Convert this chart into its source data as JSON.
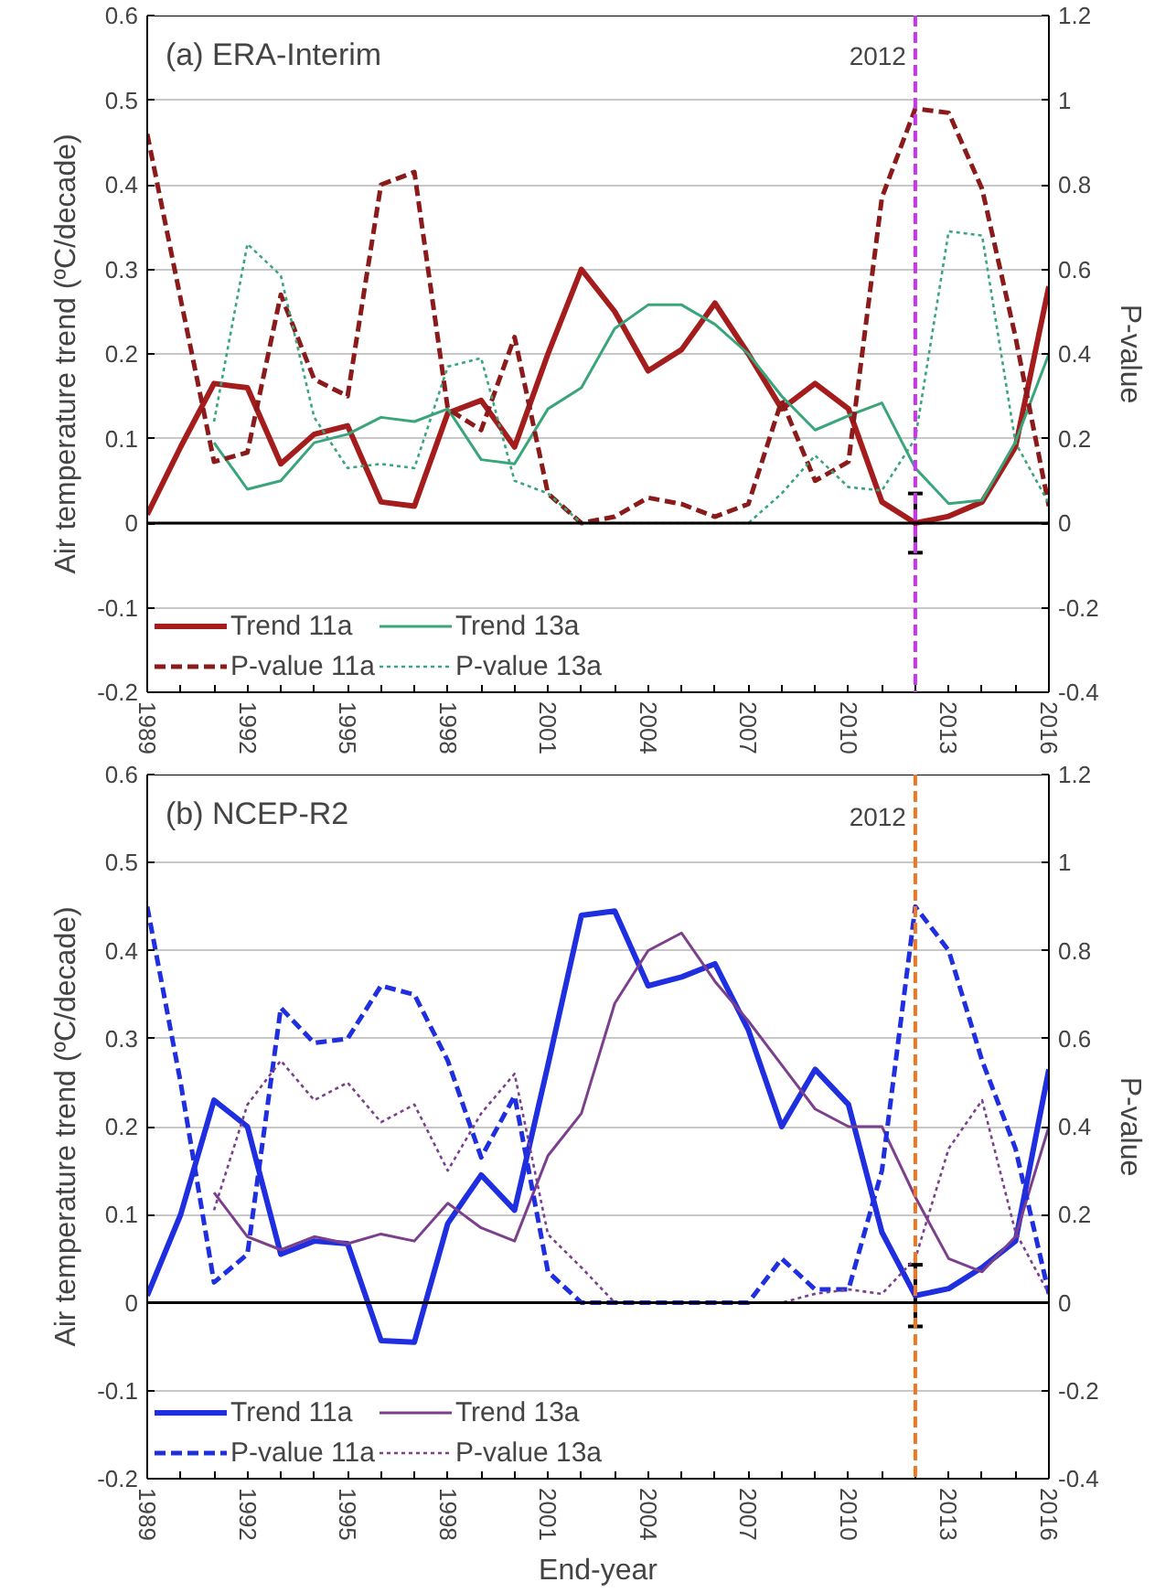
{
  "chart_data": [
    {
      "type": "line",
      "title": "(a) ERA-Interim",
      "ylabel": "Air temperature trend (ºC/decade)",
      "y2label": "P-value",
      "x": [
        1989,
        1990,
        1991,
        1992,
        1993,
        1994,
        1995,
        1996,
        1997,
        1998,
        1999,
        2000,
        2001,
        2002,
        2003,
        2004,
        2005,
        2006,
        2007,
        2008,
        2009,
        2010,
        2011,
        2012,
        2013,
        2014,
        2015,
        2016
      ],
      "xlim": [
        1989,
        2016
      ],
      "xticks": [
        1989,
        1992,
        1995,
        1998,
        2001,
        2004,
        2007,
        2010,
        2013,
        2016
      ],
      "ylim": [
        -0.2,
        0.6
      ],
      "yticks": [
        -0.2,
        -0.1,
        0,
        0.1,
        0.2,
        0.3,
        0.4,
        0.5,
        0.6
      ],
      "y2lim": [
        -0.4,
        1.2
      ],
      "y2ticks": [
        -0.4,
        -0.2,
        0,
        0.2,
        0.4,
        0.6,
        0.8,
        1,
        1.2
      ],
      "grid": "y",
      "legend": "bottom left",
      "marker": "none",
      "ref_lines": [
        {
          "axis": "x",
          "value": 2012,
          "label": "2012",
          "color": "#cc33ee",
          "line_style": "dashed"
        },
        {
          "axis": "y",
          "value": 0,
          "color": "#000000",
          "line_style": "solid"
        }
      ],
      "series": [
        {
          "name": "Trend 11a",
          "color": "#a51c1c",
          "line_style": "solid",
          "values": [
            0.01,
            0.09,
            0.165,
            0.16,
            0.07,
            0.105,
            0.115,
            0.025,
            0.02,
            0.13,
            0.145,
            0.09,
            0.2,
            0.3,
            0.25,
            0.18,
            0.205,
            0.26,
            0.2,
            0.135,
            0.165,
            0.135,
            0.025,
            0.0,
            0.008,
            0.025,
            0.09,
            0.28
          ],
          "errors": [
            null,
            null,
            null,
            null,
            null,
            null,
            null,
            null,
            null,
            null,
            null,
            null,
            null,
            null,
            null,
            null,
            null,
            null,
            null,
            null,
            null,
            null,
            null,
            0.035,
            null,
            null,
            null,
            null
          ]
        },
        {
          "name": "Trend 13a",
          "color": "#3aa57a",
          "line_style": "solid",
          "values": [
            null,
            null,
            0.095,
            0.04,
            0.05,
            0.095,
            0.105,
            0.125,
            0.12,
            0.135,
            0.075,
            0.07,
            0.135,
            0.16,
            0.23,
            0.258,
            0.258,
            0.235,
            0.2,
            0.15,
            0.11,
            0.127,
            0.142,
            0.065,
            0.023,
            0.027,
            0.096,
            0.2
          ]
        },
        {
          "name": "P-value 11a",
          "color": "#8b1a1a",
          "line_style": "dashed",
          "axis": "y2",
          "values": [
            0.92,
            0.53,
            0.145,
            0.167,
            0.54,
            0.34,
            0.3,
            0.8,
            0.83,
            0.27,
            0.22,
            0.44,
            0.07,
            0.0,
            0.015,
            0.06,
            0.045,
            0.015,
            0.045,
            0.29,
            0.1,
            0.145,
            0.77,
            0.98,
            0.97,
            0.79,
            0.44,
            0.04
          ]
        },
        {
          "name": "P-value 13a",
          "color": "#3aa57a",
          "line_style": "dotted",
          "axis": "y2",
          "values": [
            null,
            null,
            0.24,
            0.66,
            0.585,
            0.25,
            0.13,
            0.14,
            0.13,
            0.37,
            0.39,
            0.1,
            0.07,
            0,
            0,
            0,
            0,
            0,
            0,
            0.07,
            0.16,
            0.085,
            0.077,
            0.2,
            0.69,
            0.68,
            0.19,
            0.046
          ]
        }
      ]
    },
    {
      "type": "line",
      "title": "(b) NCEP-R2",
      "xlabel": "End-year",
      "ylabel": "Air temperature trend (ºC/decade)",
      "y2label": "P-value",
      "x": [
        1989,
        1990,
        1991,
        1992,
        1993,
        1994,
        1995,
        1996,
        1997,
        1998,
        1999,
        2000,
        2001,
        2002,
        2003,
        2004,
        2005,
        2006,
        2007,
        2008,
        2009,
        2010,
        2011,
        2012,
        2013,
        2014,
        2015,
        2016
      ],
      "xlim": [
        1989,
        2016
      ],
      "xticks": [
        1989,
        1992,
        1995,
        1998,
        2001,
        2004,
        2007,
        2010,
        2013,
        2016
      ],
      "ylim": [
        -0.2,
        0.6
      ],
      "yticks": [
        -0.2,
        -0.1,
        0,
        0.1,
        0.2,
        0.3,
        0.4,
        0.5,
        0.6
      ],
      "y2lim": [
        -0.4,
        1.2
      ],
      "y2ticks": [
        -0.4,
        -0.2,
        0,
        0.2,
        0.4,
        0.6,
        0.8,
        1,
        1.2
      ],
      "grid": "y",
      "legend": "bottom left",
      "marker": "none",
      "ref_lines": [
        {
          "axis": "x",
          "value": 2012,
          "label": "2012",
          "color": "#ee7722",
          "line_style": "dashed"
        },
        {
          "axis": "y",
          "value": 0,
          "color": "#000000",
          "line_style": "solid"
        }
      ],
      "series": [
        {
          "name": "Trend 11a",
          "color": "#1f2fe0",
          "line_style": "solid",
          "values": [
            0.008,
            0.1,
            0.23,
            0.2,
            0.055,
            0.07,
            0.067,
            -0.043,
            -0.045,
            0.09,
            0.145,
            0.105,
            0.27,
            0.44,
            0.445,
            0.36,
            0.37,
            0.385,
            0.31,
            0.2,
            0.265,
            0.225,
            0.08,
            0.008,
            0.016,
            0.04,
            0.07,
            0.265
          ],
          "errors": [
            null,
            null,
            null,
            null,
            null,
            null,
            null,
            null,
            null,
            null,
            null,
            null,
            null,
            null,
            null,
            null,
            null,
            null,
            null,
            null,
            null,
            null,
            null,
            0.035,
            null,
            null,
            null,
            null
          ]
        },
        {
          "name": "Trend 13a",
          "color": "#7b3f8c",
          "line_style": "solid",
          "values": [
            null,
            null,
            0.125,
            0.075,
            0.06,
            0.075,
            0.067,
            0.078,
            0.07,
            0.113,
            0.085,
            0.07,
            0.167,
            0.215,
            0.34,
            0.4,
            0.42,
            0.365,
            0.32,
            0.27,
            0.22,
            0.2,
            0.2,
            0.12,
            0.05,
            0.035,
            0.075,
            0.2
          ]
        },
        {
          "name": "P-value 11a",
          "color": "#1f2fe0",
          "line_style": "dashed",
          "axis": "y2",
          "values": [
            0.9,
            0.5,
            0.046,
            0.11,
            0.67,
            0.59,
            0.6,
            0.72,
            0.7,
            0.55,
            0.33,
            0.47,
            0.07,
            0,
            0,
            0,
            0,
            0,
            0,
            0.1,
            0.03,
            0.03,
            0.3,
            0.9,
            0.8,
            0.55,
            0.35,
            0.02
          ]
        },
        {
          "name": "P-value 13a",
          "color": "#7b3f8c",
          "line_style": "dotted",
          "axis": "y2",
          "values": [
            null,
            null,
            0.21,
            0.45,
            0.55,
            0.46,
            0.5,
            0.41,
            0.45,
            0.3,
            0.43,
            0.52,
            0.155,
            0.08,
            0,
            0,
            0,
            0,
            0,
            0,
            0.02,
            0.03,
            0.02,
            0.1,
            0.35,
            0.46,
            0.16,
            0.02
          ]
        }
      ]
    }
  ]
}
